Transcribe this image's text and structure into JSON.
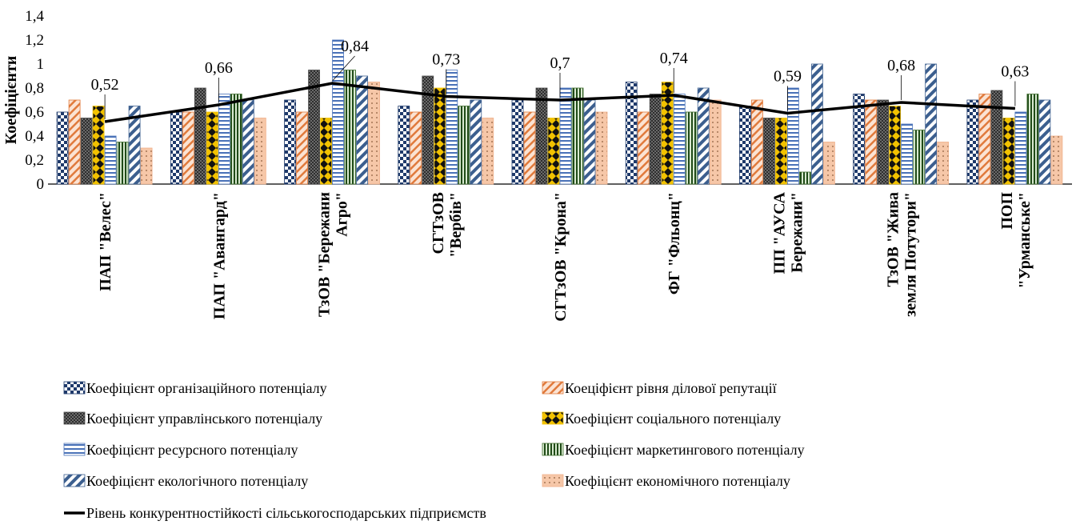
{
  "chart_data": {
    "type": "bar",
    "title": "",
    "xlabel": "",
    "ylabel": "Коефіцієнти",
    "ylim": [
      0,
      1.4
    ],
    "yticks": [
      "0",
      "0,2",
      "0,4",
      "0,6",
      "0,8",
      "1",
      "1,2",
      "1,4"
    ],
    "grid": false,
    "legend_position": "bottom",
    "categories": [
      [
        "ПАП \"Велес\""
      ],
      [
        "ПАП \"Авангард\""
      ],
      [
        "ТзОВ \"Бережани",
        "Агро\""
      ],
      [
        "СГТзОВ",
        "\"Вербів\""
      ],
      [
        "СГТзОВ \"Крона\""
      ],
      [
        "ФГ \"Фльонц\""
      ],
      [
        "ПП \"АУСА",
        "Бережани\""
      ],
      [
        "ТзОВ \"Жива",
        "земля Потутори\""
      ],
      [
        "ПОП",
        "\"Урманське\""
      ]
    ],
    "series": [
      {
        "name": "Коефіцієнт організаційного потенціалу",
        "pattern": "checker",
        "color": "#1f3a6b",
        "values": [
          0.6,
          0.6,
          0.7,
          0.65,
          0.7,
          0.85,
          0.65,
          0.75,
          0.7
        ]
      },
      {
        "name": "Коеціфієнт рівня ділової репутації",
        "pattern": "diag-orange",
        "color": "#e07a3c",
        "values": [
          0.7,
          0.6,
          0.6,
          0.6,
          0.6,
          0.6,
          0.7,
          0.7,
          0.75
        ]
      },
      {
        "name": "Коефіцієнт управлінського потенціалу",
        "pattern": "dense-gray",
        "color": "#4a4a4a",
        "values": [
          0.55,
          0.8,
          0.95,
          0.9,
          0.8,
          0.75,
          0.55,
          0.7,
          0.78
        ]
      },
      {
        "name": "Коефіцієнт соціального потенціалу",
        "pattern": "diamond-yellow",
        "color": "#f2c200",
        "values": [
          0.65,
          0.6,
          0.55,
          0.8,
          0.55,
          0.85,
          0.55,
          0.65,
          0.55
        ]
      },
      {
        "name": "Коефіцієнт ресурсного потенціалу",
        "pattern": "hlines-blue",
        "color": "#4a72b8",
        "values": [
          0.4,
          0.75,
          1.2,
          0.95,
          0.8,
          0.75,
          0.8,
          0.5,
          0.6
        ]
      },
      {
        "name": "Коефіцієнт маркетингового потенціалу",
        "pattern": "vlines-green",
        "color": "#3f6e2e",
        "values": [
          0.35,
          0.75,
          0.95,
          0.65,
          0.8,
          0.6,
          0.1,
          0.45,
          0.75
        ]
      },
      {
        "name": "Коефіцієнт екологічного потенціалу",
        "pattern": "diag-blue",
        "color": "#3c5f8f",
        "values": [
          0.65,
          0.7,
          0.9,
          0.7,
          0.7,
          0.8,
          1.0,
          1.0,
          0.7
        ]
      },
      {
        "name": "Коефіцієнт економічного потенціалу",
        "pattern": "dots-salmon",
        "color": "#f0b08a",
        "values": [
          0.3,
          0.55,
          0.85,
          0.55,
          0.6,
          0.7,
          0.35,
          0.35,
          0.4
        ]
      }
    ],
    "line": {
      "name": "Рівень конкурентностійкості сільськогосподарських підприємств",
      "color": "#000000",
      "values": [
        0.52,
        0.66,
        0.84,
        0.73,
        0.7,
        0.74,
        0.59,
        0.68,
        0.63
      ],
      "labels": [
        "0,52",
        "0,66",
        "0,84",
        "0,73",
        "0,7",
        "0,74",
        "0,59",
        "0,68",
        "0,63"
      ]
    }
  }
}
